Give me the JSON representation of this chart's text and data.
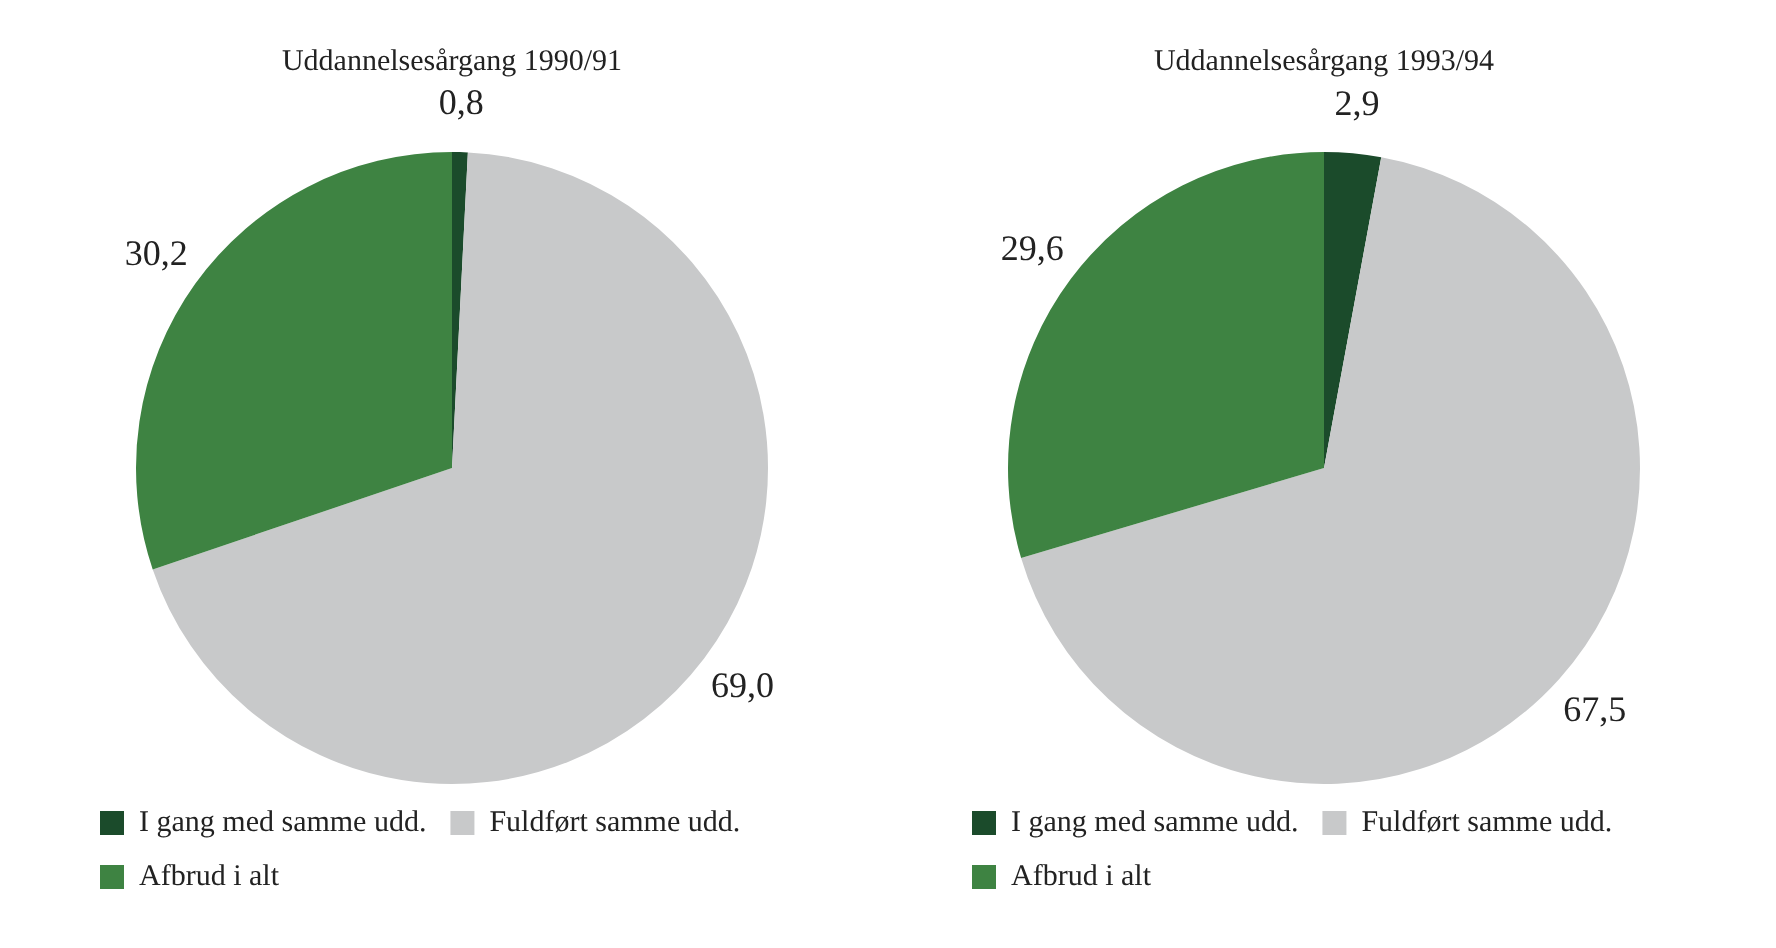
{
  "chart_data": [
    {
      "type": "pie",
      "title": "Uddannelsesårgang 1990/91",
      "categories": [
        "I gang med samme udd.",
        "Fuldført samme udd.",
        "Afbrud i alt"
      ],
      "values": [
        0.8,
        69.0,
        30.2
      ],
      "value_labels": [
        "0,8",
        "69,0",
        "30,2"
      ],
      "colors": [
        "#1b4b2b",
        "#c8c9ca",
        "#3e8342"
      ],
      "legend": "bottom left"
    },
    {
      "type": "pie",
      "title": "Uddannelsesårgang 1993/94",
      "categories": [
        "I gang med samme udd.",
        "Fuldført samme udd.",
        "Afbrud i alt"
      ],
      "values": [
        2.9,
        67.5,
        29.6
      ],
      "value_labels": [
        "2,9",
        "67,5",
        "29,6"
      ],
      "colors": [
        "#1b4b2b",
        "#c8c9ca",
        "#3e8342"
      ],
      "legend": "bottom left"
    }
  ]
}
